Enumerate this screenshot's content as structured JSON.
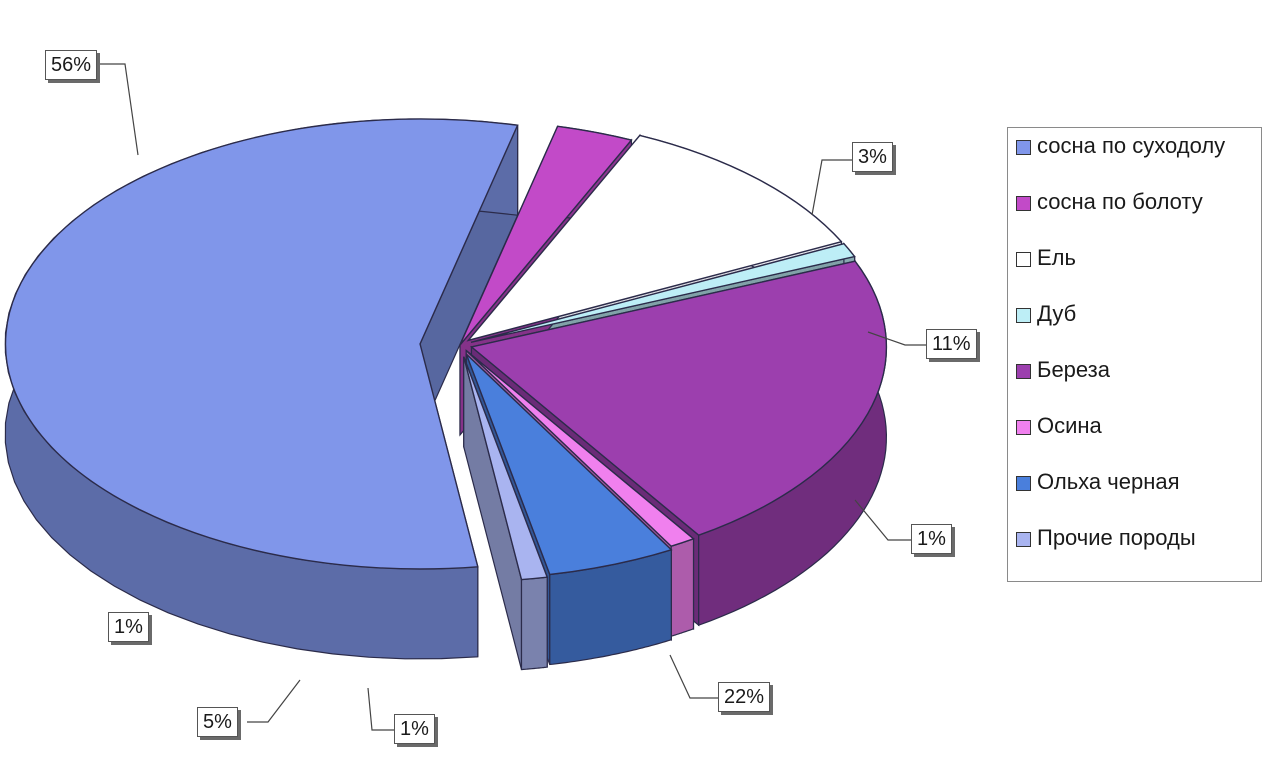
{
  "chart_data": {
    "type": "pie",
    "style": "3d-exploded",
    "legend_position": "right",
    "slices": [
      {
        "label": "сосна по суходолу",
        "value": 56,
        "data_label": "56%",
        "color": "#8096ea"
      },
      {
        "label": "сосна по болоту",
        "value": 3,
        "data_label": "3%",
        "color": "#c24ac8"
      },
      {
        "label": "Ель",
        "value": 11,
        "data_label": "11%",
        "color": "#ffffff"
      },
      {
        "label": "Дуб",
        "value": 1,
        "data_label": "1%",
        "color": "#bdeef6"
      },
      {
        "label": "Береза",
        "value": 22,
        "data_label": "22%",
        "color": "#9c3fae"
      },
      {
        "label": "Осина",
        "value": 1,
        "data_label": "1%",
        "color": "#f080ee"
      },
      {
        "label": "Ольха черная",
        "value": 5,
        "data_label": "5%",
        "color": "#4a7fdc"
      },
      {
        "label": "Прочие породы",
        "value": 1,
        "data_label": "1%",
        "color": "#a9b4f0"
      }
    ]
  }
}
